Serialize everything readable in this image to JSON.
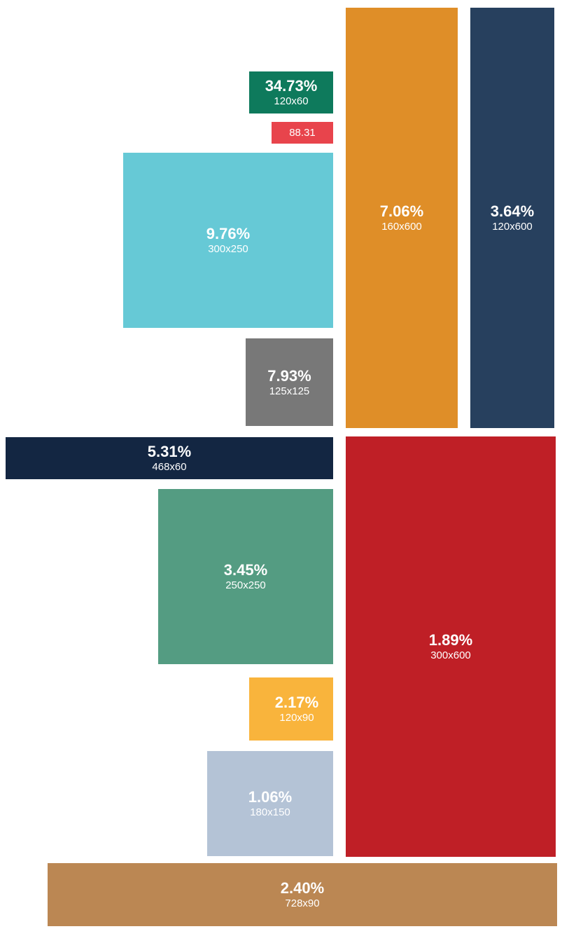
{
  "chart_data": {
    "type": "treemap",
    "title": "",
    "tiles": [
      {
        "id": "t120x60",
        "value_label": "34.73%",
        "size_label": "120x60",
        "color": "#0e7a5c"
      },
      {
        "id": "t88",
        "value_label": "88.31",
        "size_label": "",
        "color": "#e8444c"
      },
      {
        "id": "t300x250",
        "value_label": "9.76%",
        "size_label": "300x250",
        "color": "#66c9d6"
      },
      {
        "id": "t125x125",
        "value_label": "7.93%",
        "size_label": "125x125",
        "color": "#787878"
      },
      {
        "id": "t160x600",
        "value_label": "7.06%",
        "size_label": "160x600",
        "color": "#df8e28"
      },
      {
        "id": "t120x600",
        "value_label": "3.64%",
        "size_label": "120x600",
        "color": "#27405e"
      },
      {
        "id": "t468x60",
        "value_label": "5.31%",
        "size_label": "468x60",
        "color": "#132642"
      },
      {
        "id": "t250x250",
        "value_label": "3.45%",
        "size_label": "250x250",
        "color": "#549c82"
      },
      {
        "id": "t300x600",
        "value_label": "1.89%",
        "size_label": "300x600",
        "color": "#bf1f26"
      },
      {
        "id": "t120x90",
        "value_label": "2.17%",
        "size_label": "120x90",
        "color": "#f9b43c"
      },
      {
        "id": "t180x150",
        "value_label": "1.06%",
        "size_label": "180x150",
        "color": "#b4c3d6"
      },
      {
        "id": "t728x90",
        "value_label": "2.40%",
        "size_label": "728x90",
        "color": "#bb8753"
      }
    ]
  }
}
